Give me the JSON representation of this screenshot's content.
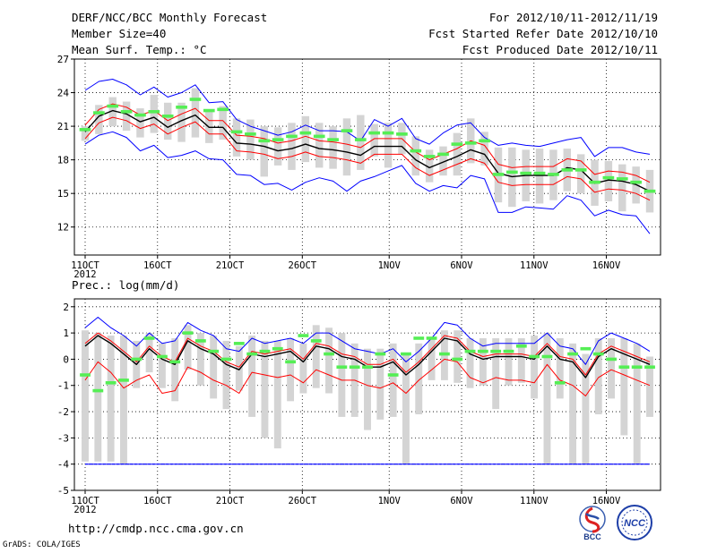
{
  "header": {
    "title": "DERF/NCC/BCC Monthly Forecast",
    "member_size": "Member Size=40",
    "variable_top": "Mean Surf. Temp.: °C",
    "forecast_range": "For 2012/10/11-2012/11/19",
    "started_date": "Fcst Started Refer Date 2012/10/10",
    "produced_date": "Fcst Produced Date 2012/10/11"
  },
  "footer": {
    "url": "http://cmdp.ncc.cma.gov.cn",
    "grads": "GrADS: COLA/IGES",
    "logo_bcc": "BCC",
    "logo_ncc": "NCC"
  },
  "colors": {
    "ensemble_mean": "#000000",
    "spread": "#ff0000",
    "extreme": "#0000ff",
    "member_range": "#d4d4d4",
    "median": "#55ee55"
  },
  "chart_data": [
    {
      "type": "line",
      "title": "Mean Surf. Temp.: °C",
      "x_ticks": [
        "11OCT",
        "16OCT",
        "21OCT",
        "26OCT",
        "1NOV",
        "6NOV",
        "11NOV",
        "16NOV"
      ],
      "x_tick_days": [
        1,
        6,
        11,
        16,
        22,
        27,
        32,
        37
      ],
      "x_year": "2012",
      "y_ticks": [
        12,
        15,
        18,
        21,
        24,
        27
      ],
      "ylim": [
        9.5,
        27
      ],
      "grid": true,
      "days": [
        1,
        40
      ],
      "series": [
        {
          "name": "ensemble mean",
          "values": [
            20.5,
            21.9,
            22.4,
            22.1,
            21.4,
            21.8,
            20.9,
            21.5,
            22.0,
            20.9,
            20.9,
            19.5,
            19.4,
            19.2,
            18.8,
            19.0,
            19.4,
            19.0,
            18.9,
            18.7,
            18.4,
            19.2,
            19.2,
            19.2,
            18.0,
            17.3,
            17.8,
            18.3,
            18.9,
            18.5,
            16.8,
            16.5,
            16.6,
            16.6,
            16.6,
            17.3,
            17.1,
            15.9,
            16.2,
            16.1,
            15.8,
            15.2
          ]
        },
        {
          "name": "mean + sd",
          "values": [
            21.1,
            22.5,
            23.0,
            22.7,
            22.0,
            22.4,
            21.5,
            22.1,
            22.6,
            21.5,
            21.5,
            20.2,
            20.1,
            19.9,
            19.5,
            19.7,
            20.1,
            19.7,
            19.6,
            19.4,
            19.1,
            19.9,
            19.9,
            19.9,
            18.7,
            18.0,
            18.5,
            19.0,
            19.7,
            19.3,
            17.6,
            17.3,
            17.4,
            17.4,
            17.4,
            18.1,
            17.9,
            16.7,
            17.0,
            16.9,
            16.6,
            16.0
          ]
        },
        {
          "name": "mean - sd",
          "values": [
            19.9,
            21.3,
            21.8,
            21.5,
            20.8,
            21.2,
            20.3,
            20.9,
            21.4,
            20.3,
            20.3,
            18.8,
            18.7,
            18.5,
            18.1,
            18.3,
            18.7,
            18.3,
            18.2,
            18.0,
            17.7,
            18.5,
            18.5,
            18.5,
            17.3,
            16.6,
            17.1,
            17.6,
            18.1,
            17.7,
            16.0,
            15.7,
            15.8,
            15.8,
            15.8,
            16.5,
            16.3,
            15.1,
            15.4,
            15.3,
            15.0,
            14.4
          ]
        },
        {
          "name": "maximum",
          "values": [
            24.2,
            25.0,
            25.2,
            24.7,
            23.8,
            24.5,
            23.6,
            24.0,
            24.7,
            23.1,
            23.2,
            21.6,
            21.0,
            20.6,
            20.2,
            20.5,
            21.1,
            20.6,
            20.6,
            20.5,
            19.7,
            21.6,
            21.0,
            21.7,
            19.9,
            19.4,
            20.4,
            21.1,
            21.3,
            20.0,
            19.3,
            19.5,
            19.3,
            19.2,
            19.5,
            19.8,
            20.0,
            18.3,
            19.1,
            19.1,
            18.7,
            18.5
          ]
        },
        {
          "name": "minimum",
          "values": [
            19.4,
            20.2,
            20.5,
            20.0,
            18.8,
            19.3,
            18.2,
            18.4,
            18.8,
            18.1,
            18.0,
            16.7,
            16.6,
            15.8,
            15.9,
            15.3,
            16.0,
            16.4,
            16.1,
            15.2,
            16.1,
            16.5,
            17.0,
            17.5,
            15.9,
            15.2,
            15.7,
            15.5,
            16.6,
            16.3,
            13.3,
            13.3,
            13.8,
            13.7,
            13.6,
            14.8,
            14.4,
            13.0,
            13.5,
            13.1,
            13.0,
            11.4
          ]
        }
      ],
      "box_range": {
        "min": [
          19.7,
          20.3,
          21.0,
          20.6,
          20.0,
          20.4,
          19.8,
          19.6,
          20.0,
          19.5,
          19.8,
          18.3,
          18.0,
          16.5,
          17.5,
          17.1,
          17.8,
          17.3,
          17.2,
          16.6,
          17.1,
          18.3,
          17.3,
          18.5,
          16.6,
          16.0,
          16.6,
          16.6,
          17.7,
          17.5,
          14.2,
          13.8,
          14.3,
          14.1,
          14.4,
          15.2,
          15.0,
          13.9,
          14.3,
          13.4,
          14.1,
          13.3
        ],
        "max": [
          21.0,
          22.9,
          23.6,
          23.2,
          22.6,
          23.8,
          23.1,
          23.1,
          24.4,
          22.4,
          22.8,
          21.7,
          21.6,
          21.0,
          20.9,
          21.3,
          21.9,
          21.3,
          21.0,
          21.7,
          22.0,
          21.2,
          21.3,
          21.3,
          20.1,
          18.9,
          19.2,
          20.4,
          21.7,
          20.5,
          19.1,
          19.1,
          18.9,
          19.0,
          18.9,
          19.0,
          18.5,
          18.0,
          17.9,
          17.6,
          17.4,
          17.1
        ]
      },
      "median": [
        20.7,
        22.2,
        22.8,
        22.3,
        22.0,
        22.3,
        21.9,
        22.7,
        23.4,
        22.4,
        22.5,
        20.5,
        20.3,
        19.7,
        19.8,
        20.1,
        20.4,
        20.1,
        19.8,
        20.6,
        19.8,
        20.4,
        20.4,
        20.3,
        18.8,
        18.3,
        18.5,
        19.4,
        19.5,
        19.7,
        16.7,
        16.9,
        16.8,
        16.8,
        16.7,
        17.1,
        17.1,
        16.0,
        16.4,
        16.3,
        16.0,
        15.2
      ]
    },
    {
      "type": "line",
      "title": "Prec.: log(mm/d)",
      "x_ticks": [
        "11OCT",
        "16OCT",
        "21OCT",
        "26OCT",
        "1NOV",
        "6NOV",
        "11NOV",
        "16NOV"
      ],
      "x_tick_days": [
        1,
        6,
        11,
        16,
        22,
        27,
        32,
        37
      ],
      "x_year": "2012",
      "y_ticks": [
        -5,
        -4,
        -3,
        -2,
        -1,
        0,
        1,
        2
      ],
      "ylim": [
        -5,
        2.3
      ],
      "grid": true,
      "days": [
        1,
        40
      ],
      "series": [
        {
          "name": "ensemble mean",
          "values": [
            0.5,
            0.9,
            0.6,
            0.2,
            -0.2,
            0.4,
            0.0,
            -0.2,
            0.7,
            0.4,
            0.2,
            -0.2,
            -0.4,
            0.2,
            0.1,
            0.2,
            0.3,
            -0.1,
            0.5,
            0.4,
            0.1,
            0.0,
            -0.3,
            -0.3,
            -0.1,
            -0.6,
            -0.2,
            0.3,
            0.8,
            0.7,
            0.2,
            0.0,
            0.1,
            0.1,
            0.1,
            0.0,
            0.5,
            0.0,
            -0.1,
            -0.7,
            0.1,
            0.4,
            0.2,
            0.0,
            -0.2
          ]
        },
        {
          "name": "mean + sd",
          "values": [
            0.6,
            1.0,
            0.7,
            0.3,
            -0.1,
            0.5,
            0.1,
            -0.1,
            0.8,
            0.5,
            0.3,
            -0.1,
            -0.3,
            0.3,
            0.2,
            0.3,
            0.4,
            0.0,
            0.6,
            0.5,
            0.2,
            0.1,
            -0.2,
            -0.2,
            0.0,
            -0.5,
            -0.1,
            0.4,
            0.9,
            0.8,
            0.3,
            0.1,
            0.2,
            0.2,
            0.2,
            0.1,
            0.6,
            0.1,
            0.0,
            -0.6,
            0.2,
            0.5,
            0.3,
            0.1,
            -0.1
          ]
        },
        {
          "name": "mean - sd",
          "values": [
            -0.8,
            -0.1,
            -0.5,
            -1.1,
            -0.8,
            -0.6,
            -1.3,
            -1.2,
            -0.3,
            -0.5,
            -0.8,
            -1.0,
            -1.3,
            -0.5,
            -0.6,
            -0.7,
            -0.6,
            -0.9,
            -0.4,
            -0.6,
            -0.8,
            -0.8,
            -1.0,
            -1.1,
            -0.9,
            -1.3,
            -0.8,
            -0.4,
            0.0,
            -0.1,
            -0.7,
            -0.9,
            -0.7,
            -0.8,
            -0.8,
            -0.9,
            -0.2,
            -0.8,
            -1.0,
            -1.4,
            -0.7,
            -0.4,
            -0.6,
            -0.8,
            -1.0
          ]
        },
        {
          "name": "maximum",
          "values": [
            1.2,
            1.6,
            1.2,
            0.9,
            0.5,
            1.0,
            0.6,
            0.7,
            1.4,
            1.1,
            0.9,
            0.4,
            0.3,
            0.8,
            0.6,
            0.7,
            0.8,
            0.6,
            1.0,
            1.0,
            0.7,
            0.4,
            0.3,
            0.2,
            0.4,
            -0.1,
            0.3,
            0.8,
            1.4,
            1.3,
            0.8,
            0.5,
            0.6,
            0.6,
            0.6,
            0.6,
            1.0,
            0.5,
            0.4,
            -0.2,
            0.7,
            1.0,
            0.8,
            0.6,
            0.3
          ]
        },
        {
          "name": "minimum",
          "values": [
            -4,
            -4,
            -4,
            -4,
            -4,
            -4,
            -4,
            -4,
            -4,
            -4,
            -4,
            -4,
            -4,
            -4,
            -4,
            -4,
            -4,
            -4,
            -4,
            -4,
            -4,
            -4,
            -4,
            -4,
            -4,
            -4,
            -4,
            -4,
            -4,
            -4,
            -4,
            -4,
            -4,
            -4,
            -4,
            -4,
            -4,
            -4,
            -4,
            -4,
            -4,
            -4,
            -4,
            -4,
            -4
          ]
        }
      ],
      "box_range": {
        "min": [
          -3.9,
          -3.9,
          -3.9,
          -4.0,
          -1.1,
          -0.5,
          -1.1,
          -1.6,
          -0.4,
          -1.0,
          -1.5,
          -1.9,
          -1.2,
          -2.2,
          -3.0,
          -3.4,
          -1.6,
          -1.3,
          -1.1,
          -1.3,
          -2.2,
          -2.2,
          -2.7,
          -2.3,
          -2.2,
          -4.0,
          -2.1,
          -0.8,
          -0.8,
          -0.9,
          -1.1,
          -1.0,
          -1.9,
          -1.0,
          -0.9,
          -1.5,
          -4.0,
          -1.5,
          -4.0,
          -4.0,
          -2.1,
          -1.5,
          -2.9,
          -4.0,
          -2.2
        ],
        "max": [
          1.1,
          1.0,
          0.9,
          0.9,
          0.7,
          1.0,
          0.6,
          0.8,
          1.3,
          1.0,
          0.9,
          0.7,
          0.5,
          0.9,
          0.7,
          0.7,
          0.8,
          0.6,
          1.3,
          1.2,
          1.0,
          0.6,
          0.4,
          0.4,
          0.6,
          0.2,
          0.6,
          0.8,
          1.1,
          1.1,
          0.8,
          0.8,
          0.8,
          0.8,
          0.8,
          0.9,
          1.0,
          0.8,
          0.6,
          0.2,
          0.8,
          0.8,
          0.8,
          0.6,
          0.1
        ]
      },
      "median": [
        -0.6,
        -1.2,
        -0.9,
        -0.8,
        0.0,
        0.8,
        0.1,
        -0.1,
        1.0,
        0.7,
        0.3,
        0.0,
        0.6,
        0.2,
        0.3,
        0.4,
        -0.1,
        0.9,
        0.7,
        0.2,
        -0.3,
        -0.3,
        -0.3,
        0.2,
        -0.6,
        0.2,
        0.8,
        0.8,
        0.2,
        0.0,
        0.3,
        0.3,
        0.3,
        0.3,
        0.5,
        0.1,
        0.1,
        -0.9,
        0.2,
        0.4,
        0.2,
        0.0,
        -0.3,
        -0.3,
        -0.3
      ]
    }
  ]
}
